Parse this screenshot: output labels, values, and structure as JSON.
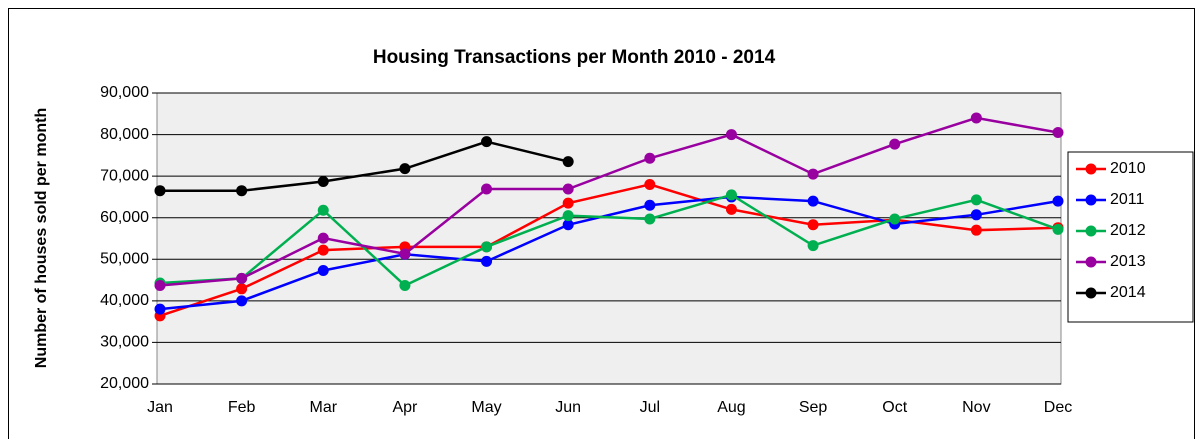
{
  "chart_data": {
    "type": "line",
    "title": "Housing Transactions per Month 2010 - 2014",
    "y_label": "Number of houses sold per month",
    "categories": [
      "Jan",
      "Feb",
      "Mar",
      "Apr",
      "May",
      "Jun",
      "Jul",
      "Aug",
      "Sep",
      "Oct",
      "Nov",
      "Dec"
    ],
    "series": [
      {
        "name": "2010",
        "color": "#ff0000",
        "values": [
          36400,
          42900,
          52200,
          53000,
          53000,
          63500,
          68000,
          62000,
          58300,
          59500,
          57000,
          57600
        ]
      },
      {
        "name": "2011",
        "color": "#0000ff",
        "values": [
          38000,
          40000,
          47300,
          51200,
          49500,
          58300,
          63000,
          65000,
          64000,
          58500,
          60700,
          64000
        ]
      },
      {
        "name": "2012",
        "color": "#00b050",
        "values": [
          44300,
          45400,
          61800,
          43700,
          53000,
          60500,
          59700,
          65500,
          53300,
          59700,
          64300,
          57200
        ]
      },
      {
        "name": "2013",
        "color": "#9900a0",
        "values": [
          43700,
          45400,
          55100,
          51300,
          66900,
          66900,
          74300,
          80000,
          70500,
          77700,
          84000,
          80500
        ]
      },
      {
        "name": "2014",
        "color": "#000000",
        "values": [
          66500,
          66500,
          68700,
          71800,
          78300,
          73500,
          null,
          null,
          null,
          null,
          null,
          null
        ]
      }
    ],
    "ylim": [
      20000,
      90000
    ],
    "yticks": [
      {
        "value": 20000,
        "label": "20,000"
      },
      {
        "value": 30000,
        "label": "30,000"
      },
      {
        "value": 40000,
        "label": "40,000"
      },
      {
        "value": 50000,
        "label": "50,000"
      },
      {
        "value": 60000,
        "label": "60,000"
      },
      {
        "value": 70000,
        "label": "70,000"
      },
      {
        "value": 80000,
        "label": "80,000"
      },
      {
        "value": 90000,
        "label": "90,000"
      }
    ],
    "grid": true,
    "legend": "right"
  }
}
